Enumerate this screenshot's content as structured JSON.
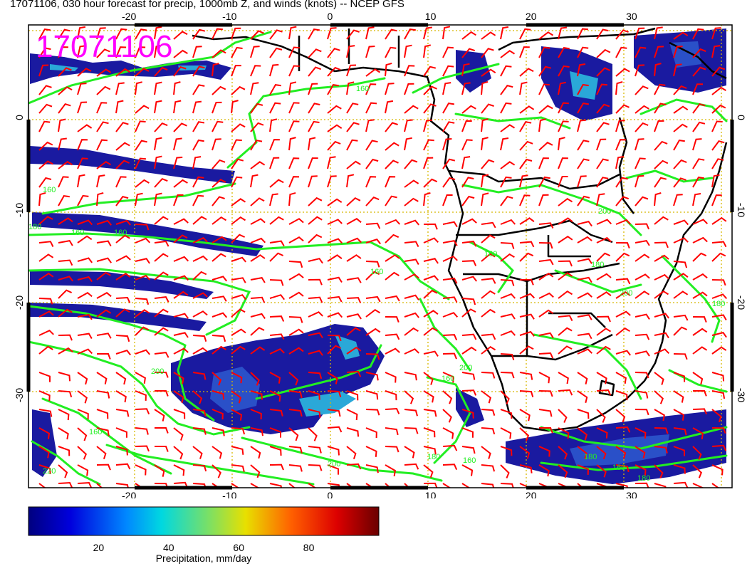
{
  "title": "17071106, 030 hour forecast for precip, 1000mb Z, and winds (knots) -- NCEP GFS",
  "stamp": "17071106",
  "axes": {
    "lon_ticks": [
      -20,
      -10,
      0,
      10,
      20,
      30
    ],
    "lat_ticks": [
      0,
      -10,
      -20,
      -30
    ],
    "lon_range": [
      -30,
      40
    ],
    "lat_range": [
      -40,
      10
    ]
  },
  "contour_labels": [
    "160",
    "160",
    "180",
    "160",
    "160",
    "160",
    "200",
    "200",
    "160",
    "160",
    "180",
    "200",
    "180",
    "220",
    "200",
    "180",
    "160",
    "180",
    "160",
    "180",
    "160",
    "200"
  ],
  "colorbar": {
    "label": "Precipitation, mm/day",
    "ticks": [
      20,
      40,
      60,
      80
    ],
    "range": [
      0,
      100
    ]
  },
  "colors": {
    "stamp": "#ff00ff",
    "contour": "#22ee22",
    "barb": "#ff0000",
    "coast": "#000000",
    "grid": "#d8b800"
  }
}
